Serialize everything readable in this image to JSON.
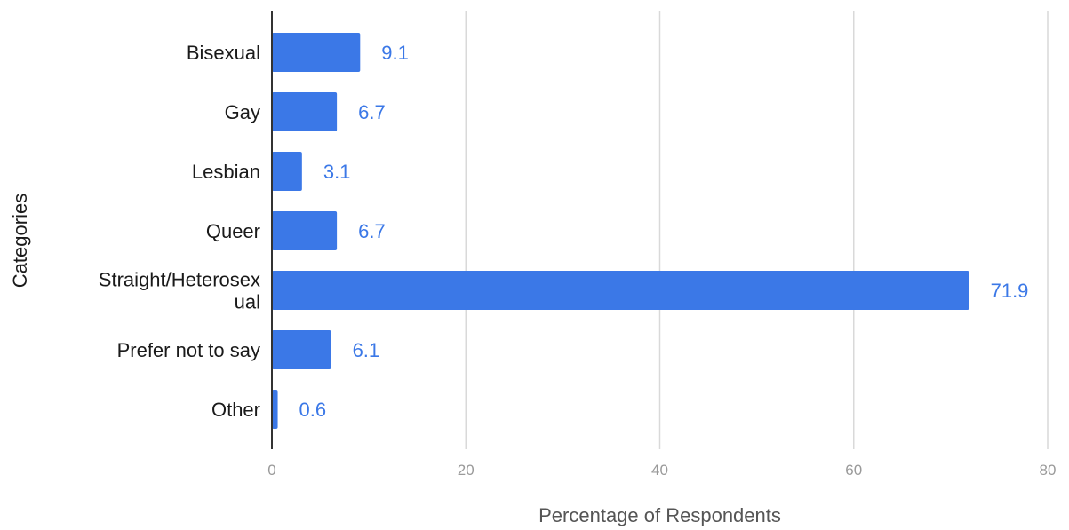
{
  "chart_data": {
    "type": "bar",
    "orientation": "horizontal",
    "title": "",
    "xlabel": "Percentage of Respondents",
    "ylabel": "Categories",
    "categories": [
      [
        "Bisexual"
      ],
      [
        "Gay"
      ],
      [
        "Lesbian"
      ],
      [
        "Queer"
      ],
      [
        "Straight/Heterosex",
        "ual"
      ],
      [
        "Prefer not to say"
      ],
      [
        "Other"
      ]
    ],
    "values": [
      9.1,
      6.7,
      3.1,
      6.7,
      71.9,
      6.1,
      0.6
    ],
    "value_labels": [
      "9.1",
      "6.7",
      "3.1",
      "6.7",
      "71.9",
      "6.1",
      "0.6"
    ],
    "xlim": [
      0,
      80
    ],
    "xticks": [
      0,
      20,
      40,
      60,
      80
    ],
    "xtick_labels": [
      "0",
      "20",
      "40",
      "60",
      "80"
    ],
    "grid": true,
    "legend": "none",
    "colors": {
      "bar": "#3b78e7",
      "value_label": "#3b78e7",
      "gridline": "#d9d9d9",
      "axis_line": "#333333"
    }
  }
}
